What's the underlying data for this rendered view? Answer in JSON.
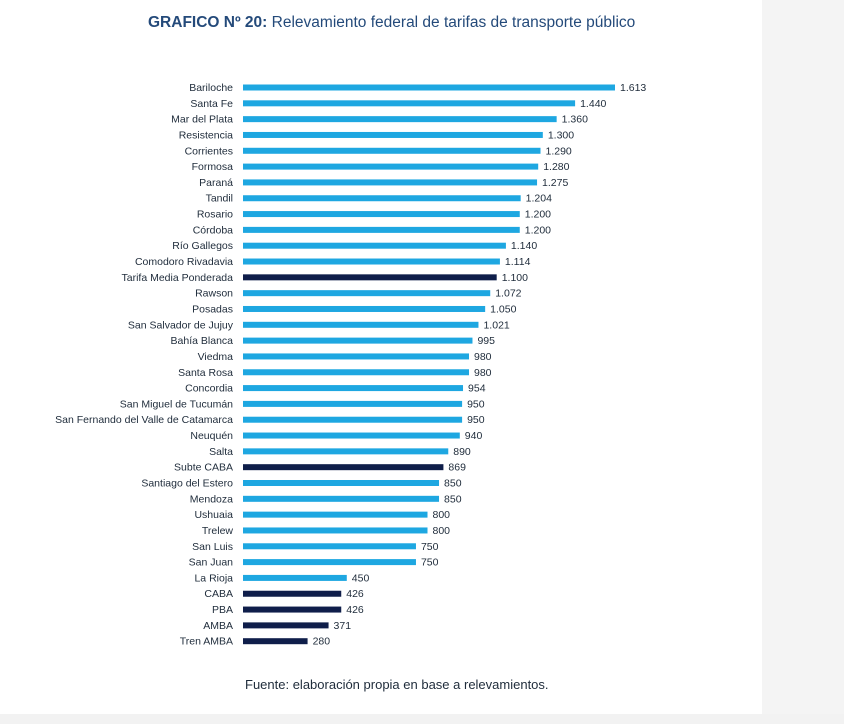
{
  "title": {
    "prefix": "GRAFICO Nº 20:",
    "text": "Relevamiento federal de tarifas de transporte público"
  },
  "source": "Fuente: elaboración propia en base a relevamientos.",
  "colors": {
    "bar_default": "#1ea7e1",
    "bar_highlight": "#0f1e4a",
    "title": "#244a7a",
    "text": "#1e2b3a"
  },
  "chart_data": {
    "type": "bar",
    "orientation": "horizontal",
    "title": "Relevamiento federal de tarifas de transporte público",
    "xlabel": "",
    "ylabel": "",
    "xlim": [
      0,
      1613
    ],
    "grid": false,
    "legend": "none",
    "categories": [
      "Bariloche",
      "Santa Fe",
      "Mar del Plata",
      "Resistencia",
      "Corrientes",
      "Formosa",
      "Paraná",
      "Tandil",
      "Rosario",
      "Córdoba",
      "Río Gallegos",
      "Comodoro Rivadavia",
      "Tarifa Media Ponderada",
      "Rawson",
      "Posadas",
      "San Salvador de Jujuy",
      "Bahía Blanca",
      "Viedma",
      "Santa Rosa",
      "Concordia",
      "San Miguel de Tucumán",
      "San Fernando del Valle de Catamarca",
      "Neuquén",
      "Salta",
      "Subte CABA",
      "Santiago del Estero",
      "Mendoza",
      "Ushuaia",
      "Trelew",
      "San Luis",
      "San Juan",
      "La Rioja",
      "CABA",
      "PBA",
      "AMBA",
      "Tren AMBA"
    ],
    "values": [
      1613,
      1440,
      1360,
      1300,
      1290,
      1280,
      1275,
      1204,
      1200,
      1200,
      1140,
      1114,
      1100,
      1072,
      1050,
      1021,
      995,
      980,
      980,
      954,
      950,
      950,
      940,
      890,
      869,
      850,
      850,
      800,
      800,
      750,
      750,
      450,
      426,
      426,
      371,
      280
    ],
    "value_labels": [
      "1.613",
      "1.440",
      "1.360",
      "1.300",
      "1.290",
      "1.280",
      "1.275",
      "1.204",
      "1.200",
      "1.200",
      "1.140",
      "1.114",
      "1.100",
      "1.072",
      "1.050",
      "1.021",
      "995",
      "980",
      "980",
      "954",
      "950",
      "950",
      "940",
      "890",
      "869",
      "850",
      "850",
      "800",
      "800",
      "750",
      "750",
      "450",
      "426",
      "426",
      "371",
      "280"
    ],
    "highlighted": [
      "Tarifa Media Ponderada",
      "Subte CABA",
      "CABA",
      "PBA",
      "AMBA",
      "Tren AMBA"
    ]
  }
}
